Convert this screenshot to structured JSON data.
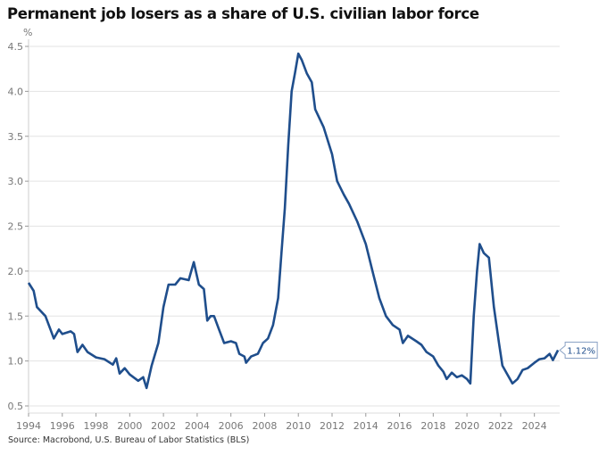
{
  "chart_data": {
    "type": "line",
    "title": "Permanent job losers as a share of U.S. civilian labor force",
    "ylabel": "%",
    "xlabel": "",
    "source": "Source: Macrobond, U.S. Bureau of Labor Statistics (BLS)",
    "xlim": [
      1994,
      2025.5
    ],
    "ylim": [
      0.5,
      4.5
    ],
    "yticks": [
      "0.5",
      "1.0",
      "1.5",
      "2.0",
      "2.5",
      "3.0",
      "3.5",
      "4.0",
      "4.5"
    ],
    "xticks": [
      "1994",
      "1996",
      "1998",
      "2000",
      "2002",
      "2004",
      "2006",
      "2008",
      "2010",
      "2012",
      "2014",
      "2016",
      "2018",
      "2020",
      "2022",
      "2024"
    ],
    "grid": true,
    "line_color": "#1f4e8c",
    "last_value_label": "1.12%",
    "series": [
      {
        "name": "Permanent job losers share",
        "x": [
          1994.0,
          1994.3,
          1994.5,
          1995.0,
          1995.3,
          1995.5,
          1995.8,
          1996.0,
          1996.5,
          1996.7,
          1996.9,
          1997.2,
          1997.5,
          1998.0,
          1998.5,
          1999.0,
          1999.2,
          1999.4,
          1999.7,
          2000.0,
          2000.5,
          2000.8,
          2001.0,
          2001.3,
          2001.7,
          2002.0,
          2002.3,
          2002.7,
          2003.0,
          2003.5,
          2003.8,
          2004.1,
          2004.4,
          2004.6,
          2004.8,
          2005.0,
          2005.3,
          2005.6,
          2006.0,
          2006.3,
          2006.5,
          2006.8,
          2006.9,
          2007.2,
          2007.6,
          2007.9,
          2008.2,
          2008.5,
          2008.8,
          2009.0,
          2009.2,
          2009.4,
          2009.6,
          2009.8,
          2010.0,
          2010.2,
          2010.5,
          2010.8,
          2011.0,
          2011.5,
          2012.0,
          2012.3,
          2012.7,
          2013.0,
          2013.5,
          2014.0,
          2014.4,
          2014.8,
          2015.2,
          2015.6,
          2016.0,
          2016.2,
          2016.5,
          2017.0,
          2017.3,
          2017.6,
          2018.0,
          2018.3,
          2018.6,
          2018.8,
          2019.1,
          2019.4,
          2019.7,
          2020.0,
          2020.2,
          2020.4,
          2020.6,
          2020.75,
          2021.0,
          2021.3,
          2021.6,
          2021.9,
          2022.1,
          2022.4,
          2022.7,
          2023.0,
          2023.3,
          2023.6,
          2024.0,
          2024.3,
          2024.6,
          2024.9,
          2025.1,
          2025.4
        ],
        "values": [
          1.87,
          1.78,
          1.6,
          1.5,
          1.35,
          1.25,
          1.35,
          1.3,
          1.33,
          1.3,
          1.1,
          1.18,
          1.1,
          1.04,
          1.02,
          0.96,
          1.03,
          0.86,
          0.92,
          0.85,
          0.78,
          0.82,
          0.7,
          0.95,
          1.2,
          1.6,
          1.85,
          1.85,
          1.92,
          1.9,
          2.1,
          1.85,
          1.8,
          1.45,
          1.5,
          1.5,
          1.35,
          1.2,
          1.22,
          1.2,
          1.08,
          1.05,
          0.98,
          1.05,
          1.08,
          1.2,
          1.25,
          1.4,
          1.7,
          2.2,
          2.7,
          3.4,
          4.0,
          4.2,
          4.42,
          4.35,
          4.2,
          4.1,
          3.8,
          3.6,
          3.3,
          3.0,
          2.85,
          2.75,
          2.55,
          2.3,
          2.0,
          1.7,
          1.5,
          1.4,
          1.35,
          1.2,
          1.28,
          1.22,
          1.18,
          1.1,
          1.05,
          0.95,
          0.88,
          0.8,
          0.87,
          0.82,
          0.84,
          0.8,
          0.75,
          1.5,
          2.0,
          2.3,
          2.2,
          2.15,
          1.6,
          1.2,
          0.95,
          0.85,
          0.75,
          0.8,
          0.9,
          0.92,
          0.98,
          1.02,
          1.03,
          1.08,
          1.01,
          1.12
        ]
      }
    ]
  }
}
